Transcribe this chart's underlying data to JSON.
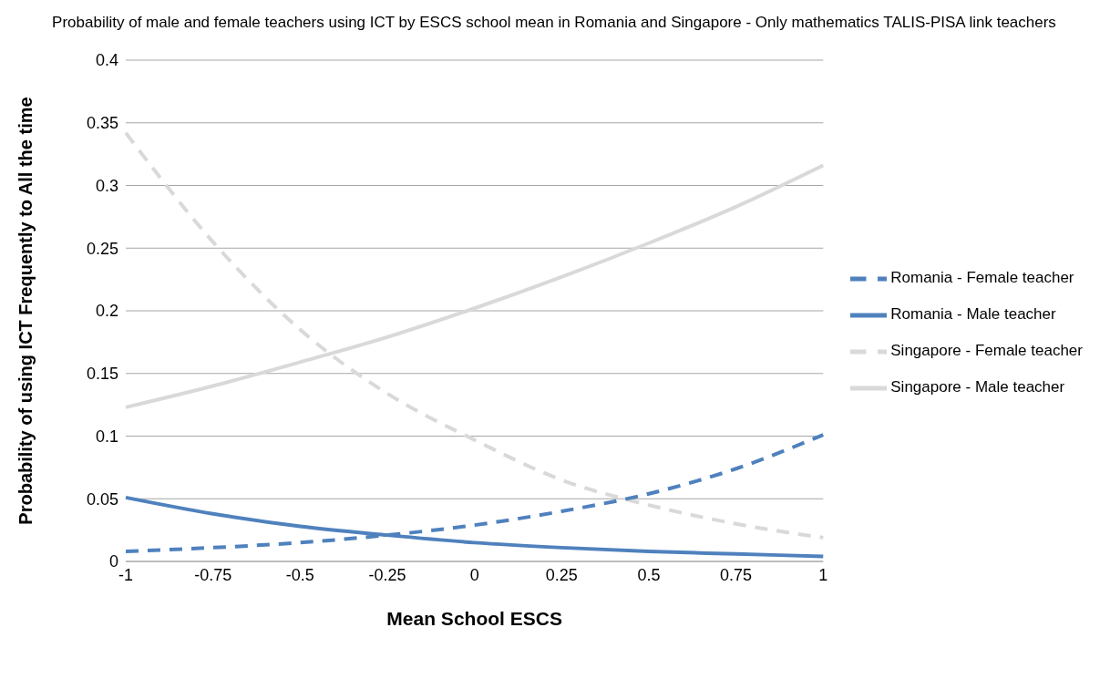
{
  "chart_data": {
    "type": "line",
    "title": "Probability of male and female teachers using ICT by ESCS school mean in Romania and Singapore - Only mathematics TALIS-PISA link teachers",
    "xlabel": "Mean School ESCS",
    "ylabel": "Probability of using ICT Frequently to All the time",
    "categories": [
      "-1",
      "-0.75",
      "-0.5",
      "-0.25",
      "0",
      "0.25",
      "0.5",
      "0.75",
      "1"
    ],
    "series": [
      {
        "name": "Singapore - Male teacher",
        "color": "#d9d9d9",
        "line_style": "solid",
        "values": [
          0.123,
          0.14,
          0.159,
          0.179,
          0.202,
          0.227,
          0.254,
          0.283,
          0.316
        ]
      },
      {
        "name": "Singapore - Female teacher",
        "color": "#d9d9d9",
        "line_style": "dashed",
        "values": [
          0.342,
          0.255,
          0.185,
          0.134,
          0.097,
          0.065,
          0.045,
          0.03,
          0.019
        ]
      },
      {
        "name": "Romania - Male teacher",
        "color": "#4f81bd",
        "line_style": "solid",
        "values": [
          0.051,
          0.038,
          0.028,
          0.021,
          0.015,
          0.011,
          0.008,
          0.006,
          0.004
        ]
      },
      {
        "name": "Romania - Female teacher",
        "color": "#4f81bd",
        "line_style": "dashed",
        "values": [
          0.008,
          0.011,
          0.015,
          0.021,
          0.029,
          0.04,
          0.054,
          0.074,
          0.101
        ]
      }
    ],
    "ylim": [
      0,
      0.4
    ],
    "yticks": [
      0,
      0.05,
      0.1,
      0.15,
      0.2,
      0.25,
      0.3,
      0.35,
      0.4
    ],
    "grid": "y",
    "legend": "right",
    "marker": "none"
  }
}
